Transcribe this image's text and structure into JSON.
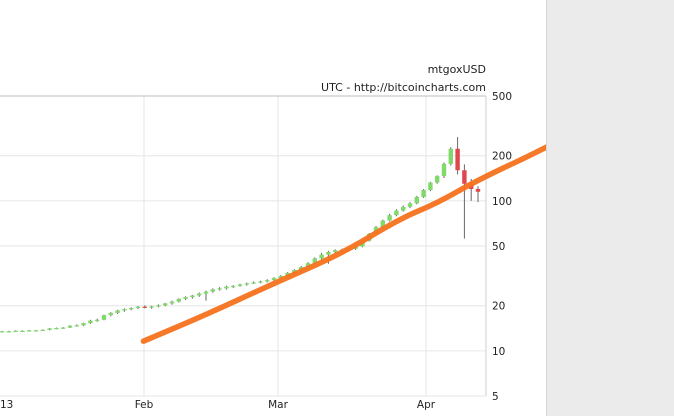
{
  "header": {
    "symbol": "mtgoxUSD",
    "source": "UTC - http://bitcoincharts.com"
  },
  "colors": {
    "up_candle": "#7fd96b",
    "down_candle": "#e0474c",
    "trend_line": "#f5721e",
    "grid": "#e6e6e6",
    "wick": "#666666"
  },
  "chart_data": {
    "type": "candlestick",
    "title": "",
    "xlabel": "",
    "ylabel": "",
    "yscale": "log",
    "ylim": [
      5,
      500
    ],
    "yticks": [
      500,
      200,
      100,
      50,
      20,
      10,
      5
    ],
    "xticks": [
      "13",
      "Feb",
      "Mar",
      "Apr"
    ],
    "grid": true,
    "series": [
      {
        "name": "mtgoxUSD",
        "kind": "candles",
        "values": [
          [
            13.5,
            13.6,
            13.4,
            13.5
          ],
          [
            13.5,
            13.6,
            13.4,
            13.5
          ],
          [
            13.5,
            13.7,
            13.4,
            13.6
          ],
          [
            13.6,
            13.7,
            13.5,
            13.6
          ],
          [
            13.6,
            13.8,
            13.5,
            13.7
          ],
          [
            13.7,
            13.8,
            13.6,
            13.7
          ],
          [
            13.7,
            13.9,
            13.6,
            13.8
          ],
          [
            13.8,
            14.2,
            13.7,
            14.1
          ],
          [
            14.1,
            14.3,
            13.9,
            14.2
          ],
          [
            14.2,
            14.4,
            14.0,
            14.3
          ],
          [
            14.3,
            14.8,
            14.2,
            14.7
          ],
          [
            14.7,
            15.0,
            14.5,
            14.8
          ],
          [
            14.8,
            15.4,
            14.6,
            15.3
          ],
          [
            15.3,
            16.1,
            15.1,
            15.9
          ],
          [
            15.9,
            16.4,
            15.6,
            16.1
          ],
          [
            16.1,
            17.4,
            16.0,
            17.3
          ],
          [
            17.3,
            18.1,
            17.0,
            17.9
          ],
          [
            17.9,
            18.8,
            17.6,
            18.6
          ],
          [
            18.6,
            19.2,
            18.2,
            19.0
          ],
          [
            19.0,
            19.5,
            18.6,
            19.3
          ],
          [
            19.3,
            19.9,
            19.0,
            19.7
          ],
          [
            19.7,
            20.1,
            19.2,
            19.5
          ],
          [
            19.5,
            20.0,
            19.1,
            19.8
          ],
          [
            19.8,
            20.4,
            19.5,
            20.1
          ],
          [
            20.1,
            20.9,
            19.8,
            20.7
          ],
          [
            20.7,
            21.6,
            20.3,
            21.3
          ],
          [
            21.3,
            22.4,
            21.0,
            22.2
          ],
          [
            22.2,
            23.1,
            21.8,
            22.8
          ],
          [
            22.8,
            23.6,
            22.3,
            23.4
          ],
          [
            23.4,
            24.5,
            22.9,
            24.1
          ],
          [
            24.1,
            25.2,
            21.6,
            24.8
          ],
          [
            24.8,
            26.1,
            24.4,
            25.7
          ],
          [
            25.7,
            26.6,
            25.2,
            26.1
          ],
          [
            26.1,
            27.2,
            25.6,
            26.8
          ],
          [
            26.8,
            27.4,
            26.2,
            27.1
          ],
          [
            27.1,
            28.0,
            26.8,
            27.7
          ],
          [
            27.7,
            28.5,
            27.2,
            28.2
          ],
          [
            28.2,
            29.0,
            27.9,
            28.6
          ],
          [
            28.6,
            29.4,
            28.2,
            29.0
          ],
          [
            29.0,
            30.0,
            28.6,
            29.6
          ],
          [
            29.6,
            31.0,
            29.3,
            30.6
          ],
          [
            30.6,
            32.0,
            30.2,
            31.5
          ],
          [
            31.5,
            33.5,
            31.0,
            33.1
          ],
          [
            33.1,
            35.0,
            32.5,
            34.6
          ],
          [
            34.6,
            36.8,
            33.8,
            36.2
          ],
          [
            36.2,
            39.0,
            35.5,
            38.4
          ],
          [
            38.4,
            42.0,
            37.8,
            41.3
          ],
          [
            41.3,
            45.0,
            40.2,
            43.8
          ],
          [
            43.8,
            46.5,
            38.0,
            45.6
          ],
          [
            45.6,
            47.5,
            44.5,
            46.8
          ],
          [
            46.8,
            48.0,
            45.6,
            47.2
          ],
          [
            47.2,
            48.5,
            46.3,
            47.9
          ],
          [
            47.9,
            50.5,
            47.0,
            49.6
          ],
          [
            49.6,
            55.0,
            49.0,
            54.2
          ],
          [
            54.2,
            61.0,
            53.5,
            60.3
          ],
          [
            60.3,
            68.0,
            59.2,
            66.8
          ],
          [
            66.8,
            75.0,
            65.8,
            73.9
          ],
          [
            73.9,
            82.0,
            72.8,
            80.2
          ],
          [
            80.2,
            88.0,
            78.9,
            86.1
          ],
          [
            86.1,
            93.0,
            84.8,
            91.2
          ],
          [
            91.2,
            98.0,
            89.5,
            96.3
          ],
          [
            96.3,
            108.0,
            94.8,
            106.2
          ],
          [
            106.2,
            120.0,
            104.5,
            118.1
          ],
          [
            118.1,
            134.0,
            116.0,
            132.4
          ],
          [
            132.4,
            148.0,
            130.0,
            146.1
          ],
          [
            146.1,
            180.0,
            142.0,
            176.3
          ],
          [
            176.3,
            228.0,
            172.0,
            222.5
          ],
          [
            222.5,
            266.0,
            150.0,
            160.0
          ],
          [
            160.0,
            175.0,
            56.0,
            130.0
          ],
          [
            130.0,
            140.0,
            100.0,
            120.0
          ],
          [
            120.0,
            125.0,
            98.0,
            115.0
          ]
        ]
      }
    ],
    "trend_line": {
      "kind": "overlay",
      "x_index": [
        20.8,
        30,
        40,
        50,
        58.5,
        64,
        70,
        80,
        95
      ],
      "values": [
        11.6,
        17.4,
        28.2,
        44.5,
        76.0,
        96.5,
        138.0,
        225.0,
        520.0
      ]
    }
  }
}
